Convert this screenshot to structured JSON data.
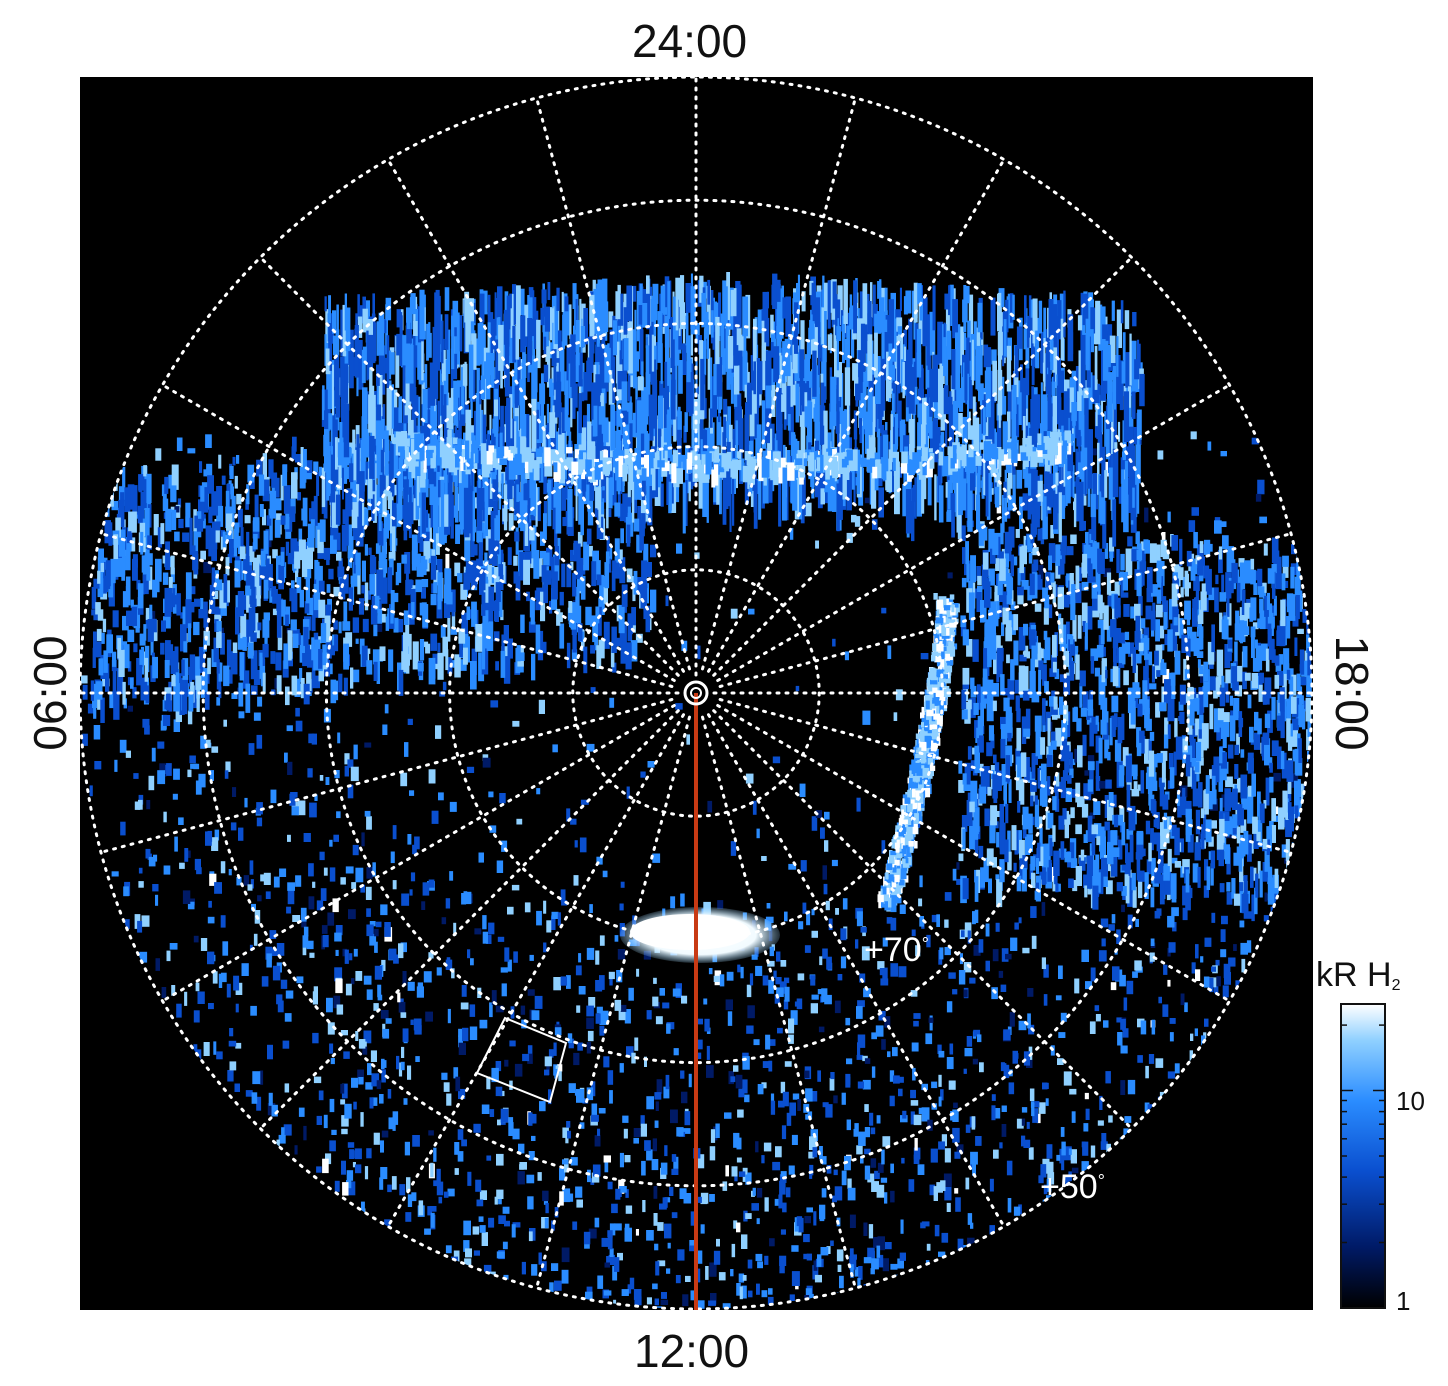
{
  "local_time_labels": {
    "top": "24:00",
    "bottom": "12:00",
    "left": "06:00",
    "right": "18:00"
  },
  "latitude_labels": {
    "inner": "+70",
    "outer": "+50",
    "degree_symbol": "°"
  },
  "colorbar": {
    "unit": "kR H",
    "unit_subscript": "2",
    "tick_labels": [
      "10",
      "1"
    ],
    "tick_values": [
      10,
      1
    ],
    "scale": "log",
    "colormap": [
      "#000000",
      "#001a66",
      "#0a4fcf",
      "#2a8cff",
      "#8fd0ff",
      "#ffffff"
    ]
  },
  "colors": {
    "background": "#000000",
    "grid": "#ffffff",
    "meridian_line": "#c83a14",
    "label": "#111111"
  }
}
